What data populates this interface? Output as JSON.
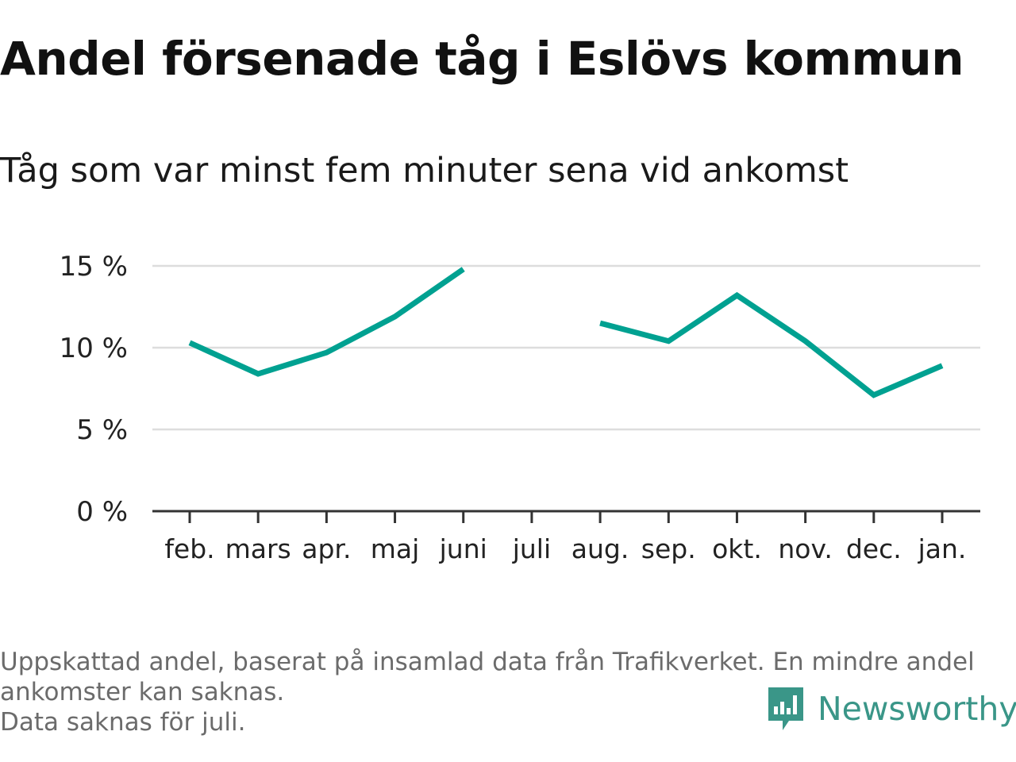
{
  "title": "Andel försenade tåg i Eslövs kommun",
  "subtitle": "Tåg som var minst fem minuter sena vid ankomst",
  "chart_data": {
    "type": "line",
    "categories": [
      "feb.",
      "mars",
      "apr.",
      "maj",
      "juni",
      "juli",
      "aug.",
      "sep.",
      "okt.",
      "nov.",
      "dec.",
      "jan."
    ],
    "series": [
      {
        "values": [
          10.3,
          8.4,
          9.7,
          11.9,
          14.8,
          null,
          11.5,
          10.4,
          13.2,
          10.4,
          7.1,
          8.9
        ]
      }
    ],
    "y_ticks": [
      "0 %",
      "5 %",
      "10 %",
      "15 %"
    ],
    "ylim": [
      0,
      15
    ],
    "grid": true,
    "line_color": "#00a191",
    "xlabel": "",
    "ylabel": ""
  },
  "footnote": {
    "line1": "Uppskattad andel, baserat på insamlad data från Trafikverket. En mindre andel",
    "line2": "ankomster kan saknas.",
    "line3": "Data saknas för juli."
  },
  "brand": {
    "name": "Newsworthy",
    "icon": "newsworthy-logo-icon",
    "color": "#3a9688"
  }
}
